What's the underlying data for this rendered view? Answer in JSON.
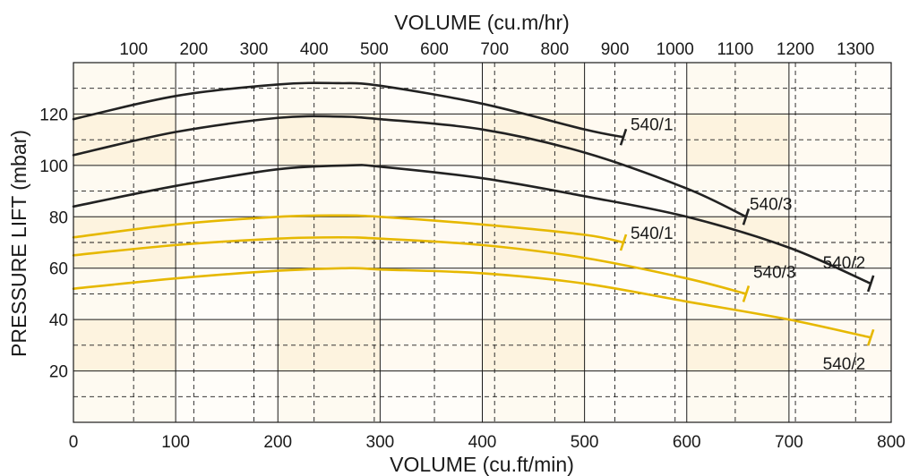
{
  "chart_data": {
    "type": "line",
    "title": "",
    "xlabel": "VOLUME (cu.ft/min)",
    "x2label": "VOLUME (cu.m/hr)",
    "ylabel": "PRESSURE LIFT (mbar)",
    "xlim": [
      0,
      800
    ],
    "ylim": [
      0,
      140
    ],
    "x_ticks": [
      "0",
      "100",
      "200",
      "300",
      "400",
      "500",
      "600",
      "700",
      "800"
    ],
    "x2_ticks": [
      "100",
      "200",
      "300",
      "400",
      "500",
      "600",
      "700",
      "800",
      "900",
      "1000",
      "1100",
      "1200",
      "1300"
    ],
    "y_ticks": [
      "20",
      "40",
      "60",
      "80",
      "100",
      "120"
    ],
    "grid": true,
    "colors": {
      "dark": "#222222",
      "yellow": "#e6b800",
      "band": "#fdf3df",
      "band_light": "#fffaf1",
      "grid": "#1a1a1a"
    },
    "series": [
      {
        "name": "540/1",
        "color": "dark",
        "x": [
          0,
          100,
          200,
          260,
          300,
          400,
          500,
          538
        ],
        "y": [
          118,
          127,
          131.5,
          132,
          131,
          124,
          114,
          111
        ]
      },
      {
        "name": "540/3",
        "color": "dark",
        "x": [
          0,
          100,
          200,
          260,
          300,
          400,
          500,
          600,
          658
        ],
        "y": [
          104,
          113,
          118.5,
          119,
          118,
          114,
          105,
          91,
          80
        ]
      },
      {
        "name": "540/2",
        "color": "dark",
        "x": [
          0,
          100,
          200,
          270,
          300,
          400,
          500,
          600,
          700,
          780
        ],
        "y": [
          84,
          92,
          98.5,
          100,
          99.5,
          95,
          88,
          80,
          68,
          54
        ]
      },
      {
        "name": "540/1",
        "color": "yellow",
        "x": [
          0,
          100,
          200,
          260,
          300,
          400,
          500,
          538
        ],
        "y": [
          72,
          77,
          80,
          80.5,
          80,
          77,
          73,
          70
        ]
      },
      {
        "name": "540/3",
        "color": "yellow",
        "x": [
          0,
          100,
          200,
          260,
          300,
          400,
          500,
          600,
          658
        ],
        "y": [
          65,
          69,
          71.5,
          72,
          71.5,
          69,
          64,
          56,
          50
        ]
      },
      {
        "name": "540/2",
        "color": "yellow",
        "x": [
          0,
          100,
          200,
          270,
          300,
          400,
          500,
          600,
          700,
          780
        ],
        "y": [
          52,
          56,
          59,
          60,
          59.5,
          58,
          54,
          47,
          40,
          33
        ]
      }
    ],
    "annotations": [
      "540/1",
      "540/3",
      "540/2",
      "540/1",
      "540/3",
      "540/2"
    ]
  }
}
